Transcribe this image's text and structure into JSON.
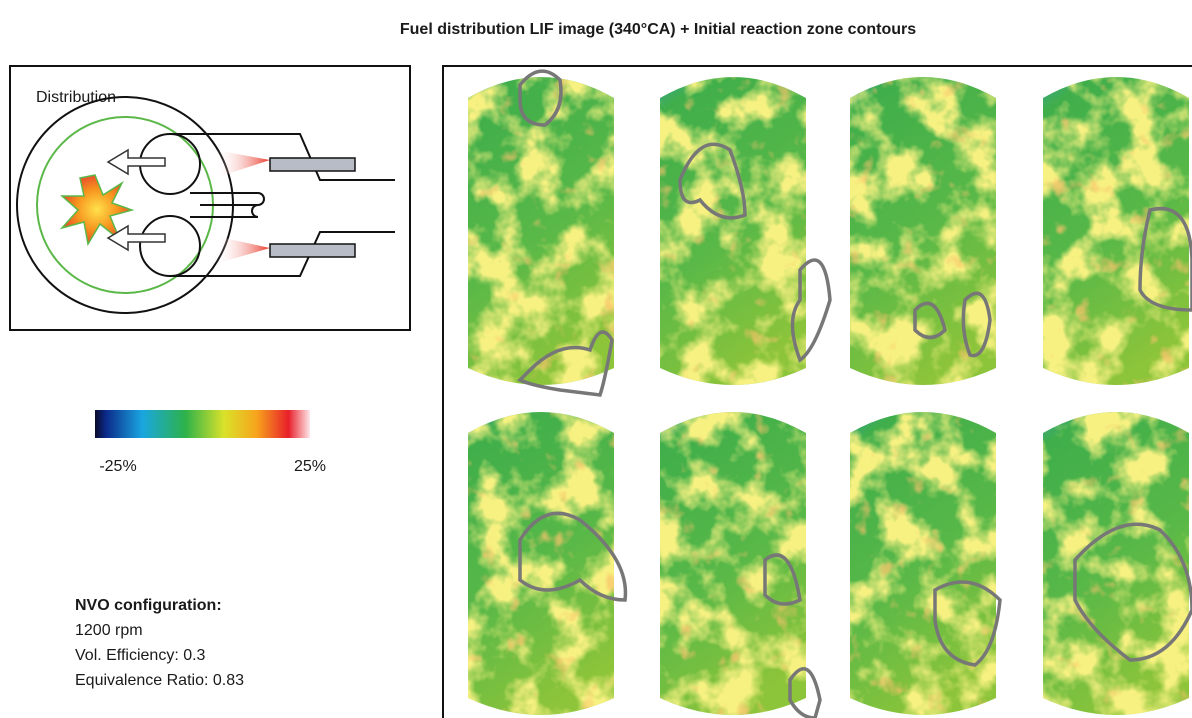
{
  "header": {
    "title": "Fuel distribution LIF image (340°CA) + Initial reaction zone contours"
  },
  "schematic": {
    "label": "Distribution"
  },
  "colorbar": {
    "min_label": "-25%",
    "max_label": "25%"
  },
  "configuration": {
    "heading": "NVO configuration:",
    "lines": [
      "1200 rpm",
      "Vol. Efficiency: 0.3",
      "Equivalence Ratio: 0.83"
    ]
  }
}
